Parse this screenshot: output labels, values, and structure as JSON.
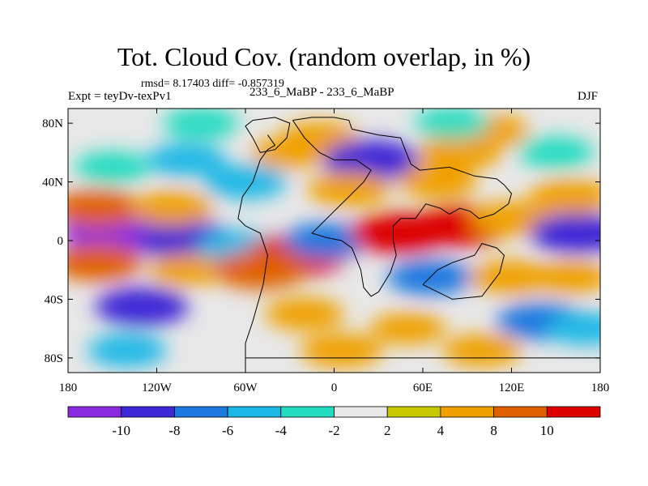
{
  "title": "Tot. Cloud Cov. (random overlap, in %)",
  "stats": "rmsd= 8.17403 diff= -0.857319",
  "experiment": "Expt = teyDv-texPv1",
  "subtitle": "233_6_MaBP - 233_6_MaBP",
  "season": "DJF",
  "x_ticks": [
    {
      "value": -180,
      "label": "180"
    },
    {
      "value": -120,
      "label": "120W"
    },
    {
      "value": -60,
      "label": "60W"
    },
    {
      "value": 0,
      "label": "0"
    },
    {
      "value": 60,
      "label": "60E"
    },
    {
      "value": 120,
      "label": "120E"
    },
    {
      "value": 180,
      "label": "180"
    }
  ],
  "y_ticks": [
    {
      "value": 80,
      "label": "80N"
    },
    {
      "value": 40,
      "label": "40N"
    },
    {
      "value": 0,
      "label": "0"
    },
    {
      "value": -40,
      "label": "40S"
    },
    {
      "value": -80,
      "label": "80S"
    }
  ],
  "colorbar": {
    "colors": [
      "#8a2be2",
      "#3c28d6",
      "#1d78e0",
      "#1ab8e6",
      "#22dcc0",
      "#e8e8e8",
      "#c8c800",
      "#f0a000",
      "#e06000",
      "#dd0000"
    ],
    "labels": [
      "-10",
      "-8",
      "-6",
      "-4",
      "-2",
      "2",
      "4",
      "8",
      "10"
    ]
  },
  "map": {
    "lon_range": [
      -180,
      180
    ],
    "lat_range": [
      -90,
      90
    ],
    "field": [
      {
        "lon": -150,
        "lat": 5,
        "value": -11
      },
      {
        "lon": -100,
        "lat": 0,
        "value": -10
      },
      {
        "lon": -65,
        "lat": -5,
        "value": -6
      },
      {
        "lon": -160,
        "lat": 22,
        "value": 8
      },
      {
        "lon": -110,
        "lat": 22,
        "value": 6
      },
      {
        "lon": -160,
        "lat": -15,
        "value": 8
      },
      {
        "lon": -100,
        "lat": -20,
        "value": 4
      },
      {
        "lon": -130,
        "lat": -45,
        "value": -9
      },
      {
        "lon": -140,
        "lat": -75,
        "value": -5
      },
      {
        "lon": -150,
        "lat": 50,
        "value": -4
      },
      {
        "lon": -100,
        "lat": 55,
        "value": -5
      },
      {
        "lon": -90,
        "lat": 80,
        "value": -4
      },
      {
        "lon": -60,
        "lat": 40,
        "value": -6
      },
      {
        "lon": -30,
        "lat": 60,
        "value": 4
      },
      {
        "lon": -10,
        "lat": 70,
        "value": 5
      },
      {
        "lon": 25,
        "lat": 55,
        "value": -10
      },
      {
        "lon": 10,
        "lat": 35,
        "value": 6
      },
      {
        "lon": -25,
        "lat": -10,
        "value": 11
      },
      {
        "lon": -50,
        "lat": -20,
        "value": 9
      },
      {
        "lon": -5,
        "lat": 0,
        "value": -7
      },
      {
        "lon": -20,
        "lat": -50,
        "value": 5
      },
      {
        "lon": 5,
        "lat": -75,
        "value": 6
      },
      {
        "lon": 45,
        "lat": 5,
        "value": 11
      },
      {
        "lon": 85,
        "lat": 10,
        "value": 11
      },
      {
        "lon": 120,
        "lat": 15,
        "value": 6
      },
      {
        "lon": 70,
        "lat": 40,
        "value": 5
      },
      {
        "lon": 85,
        "lat": 60,
        "value": 6
      },
      {
        "lon": 105,
        "lat": 75,
        "value": 5
      },
      {
        "lon": 65,
        "lat": -25,
        "value": -7
      },
      {
        "lon": 120,
        "lat": -25,
        "value": 6
      },
      {
        "lon": 160,
        "lat": -25,
        "value": 5
      },
      {
        "lon": 140,
        "lat": -55,
        "value": -8
      },
      {
        "lon": 170,
        "lat": -60,
        "value": -5
      },
      {
        "lon": 165,
        "lat": 5,
        "value": -10
      },
      {
        "lon": 160,
        "lat": 30,
        "value": 6
      },
      {
        "lon": 150,
        "lat": 60,
        "value": -4
      },
      {
        "lon": 50,
        "lat": -60,
        "value": 4
      },
      {
        "lon": 100,
        "lat": -75,
        "value": 5
      },
      {
        "lon": 80,
        "lat": 80,
        "value": -4
      }
    ],
    "coastlines": [
      [
        [
          -55,
          82
        ],
        [
          -40,
          84
        ],
        [
          -30,
          80
        ],
        [
          -32,
          70
        ],
        [
          -40,
          62
        ],
        [
          -50,
          60
        ],
        [
          -55,
          70
        ],
        [
          -60,
          78
        ],
        [
          -55,
          82
        ]
      ],
      [
        [
          -60,
          -90
        ],
        [
          -60,
          -70
        ],
        [
          -55,
          -55
        ],
        [
          -48,
          -30
        ],
        [
          -45,
          -10
        ],
        [
          -50,
          5
        ],
        [
          -60,
          10
        ],
        [
          -65,
          15
        ],
        [
          -62,
          30
        ],
        [
          -55,
          40
        ],
        [
          -50,
          55
        ],
        [
          -45,
          62
        ],
        [
          -40,
          65
        ],
        [
          -45,
          72
        ]
      ],
      [
        [
          -28,
          82
        ],
        [
          -15,
          84
        ],
        [
          0,
          84
        ],
        [
          10,
          82
        ],
        [
          12,
          76
        ],
        [
          30,
          72
        ],
        [
          45,
          70
        ],
        [
          48,
          62
        ],
        [
          52,
          52
        ],
        [
          58,
          48
        ],
        [
          78,
          50
        ],
        [
          95,
          44
        ],
        [
          110,
          42
        ],
        [
          115,
          38
        ],
        [
          120,
          32
        ],
        [
          118,
          25
        ],
        [
          108,
          18
        ],
        [
          98,
          15
        ],
        [
          92,
          20
        ],
        [
          85,
          22
        ],
        [
          78,
          18
        ],
        [
          72,
          22
        ],
        [
          62,
          25
        ],
        [
          55,
          15
        ],
        [
          45,
          15
        ],
        [
          40,
          10
        ],
        [
          40,
          0
        ],
        [
          42,
          -10
        ],
        [
          38,
          -22
        ],
        [
          30,
          -35
        ],
        [
          25,
          -38
        ],
        [
          20,
          -32
        ],
        [
          18,
          -20
        ],
        [
          12,
          -5
        ],
        [
          5,
          0
        ],
        [
          -5,
          2
        ],
        [
          -15,
          5
        ],
        [
          -10,
          10
        ],
        [
          0,
          20
        ],
        [
          10,
          30
        ],
        [
          20,
          40
        ],
        [
          25,
          48
        ],
        [
          15,
          55
        ],
        [
          0,
          55
        ],
        [
          -10,
          60
        ],
        [
          -20,
          70
        ],
        [
          -28,
          82
        ]
      ],
      [
        [
          60,
          -30
        ],
        [
          80,
          -40
        ],
        [
          100,
          -38
        ],
        [
          112,
          -22
        ],
        [
          115,
          -10
        ],
        [
          110,
          -5
        ],
        [
          100,
          -2
        ],
        [
          95,
          -10
        ],
        [
          80,
          -15
        ],
        [
          70,
          -20
        ],
        [
          60,
          -30
        ]
      ],
      [
        [
          -60,
          -80
        ],
        [
          180,
          -80
        ]
      ]
    ]
  }
}
